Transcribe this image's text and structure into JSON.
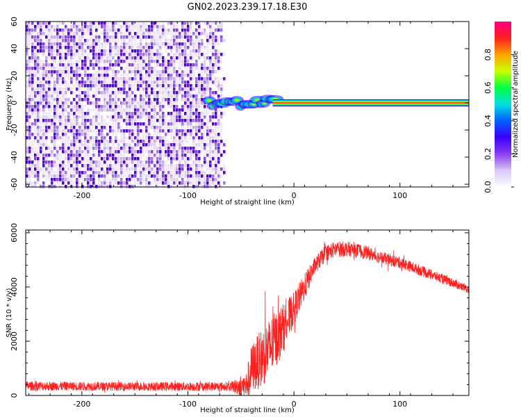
{
  "title": "GN02.2023.239.17.18.E30",
  "chart_data": [
    {
      "type": "heatmap",
      "title": "GN02.2023.239.17.18.E30",
      "xlabel": "Height of straight line (km)",
      "ylabel": "Frequency (Hz)",
      "xlim": [
        -253,
        165
      ],
      "ylim": [
        -62,
        60
      ],
      "xticks": [
        -200,
        -100,
        0,
        100
      ],
      "yticks": [
        -60,
        -40,
        -20,
        0,
        20,
        40,
        60
      ],
      "noise_region_x": [
        -253,
        -63
      ],
      "signal_band_hz": [
        -2,
        2
      ],
      "signal_transition_x": [
        -80,
        -15
      ],
      "colorbar": {
        "label": "Normalized spectral amplitude",
        "range": [
          0,
          1
        ],
        "ticks": [
          "0.0",
          "0.2",
          "0.4",
          "0.6",
          "0.8"
        ],
        "colors": [
          "#ffffff",
          "#d8c8f8",
          "#8a3cf0",
          "#3a00ff",
          "#0060ff",
          "#00e0e0",
          "#00ff40",
          "#c8ff00",
          "#ffa000",
          "#ff2020",
          "#ff0080"
        ]
      }
    },
    {
      "type": "line",
      "xlabel": "Height of straight line (km)",
      "ylabel": "SNR (10 * v/v)",
      "xlim": [
        -253,
        165
      ],
      "ylim": [
        0,
        6100
      ],
      "xticks": [
        -200,
        -100,
        0,
        100
      ],
      "yticks": [
        0,
        2000,
        4000,
        6000
      ],
      "color": "#ff2020",
      "envelope": {
        "x": [
          -253,
          -150,
          -60,
          -45,
          -40,
          -30,
          -20,
          -10,
          0,
          10,
          20,
          30,
          40,
          50,
          60,
          70,
          80,
          90,
          100,
          110,
          120,
          130,
          140,
          150,
          165
        ],
        "mid": [
          350,
          330,
          330,
          350,
          1000,
          1400,
          1900,
          2500,
          3200,
          4000,
          4800,
          5250,
          5400,
          5400,
          5350,
          5250,
          5100,
          5000,
          4900,
          4750,
          4600,
          4450,
          4300,
          4150,
          3900
        ],
        "amp": [
          170,
          160,
          170,
          500,
          900,
          1100,
          1100,
          900,
          600,
          500,
          320,
          300,
          300,
          280,
          260,
          250,
          230,
          220,
          220,
          200,
          200,
          180,
          180,
          170,
          160
        ]
      }
    }
  ]
}
